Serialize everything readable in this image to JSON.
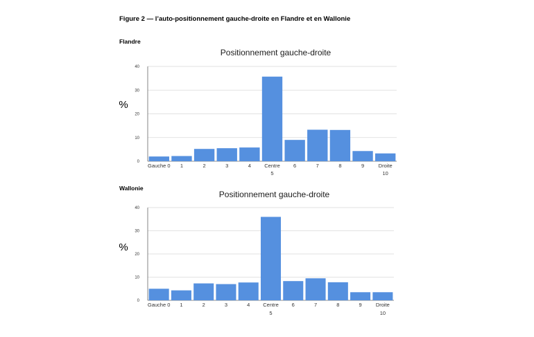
{
  "figure_title": "Figure 2 — l’auto-positionnement gauche-droite en Flandre et en Wallonie",
  "chart_data": [
    {
      "type": "bar",
      "region_label": "Flandre",
      "title": "Positionnement gauche-droite",
      "ylabel": "%",
      "xlabel": "",
      "ylim": [
        0,
        40
      ],
      "yticks": [
        0,
        10,
        20,
        30,
        40
      ],
      "grid": true,
      "legend": "none",
      "categories": [
        "0",
        "1",
        "2",
        "3",
        "4",
        "5",
        "6",
        "7",
        "8",
        "9",
        "10"
      ],
      "tick_labels": [
        "Gauche 0",
        "1",
        "2",
        "3",
        "4",
        "Centre",
        "6",
        "7",
        "8",
        "9",
        "Droite"
      ],
      "sub_labels": [
        "",
        "",
        "",
        "",
        "",
        "5",
        "",
        "",
        "",
        "",
        "10"
      ],
      "values": [
        2.0,
        2.2,
        5.2,
        5.5,
        5.8,
        35.7,
        9.0,
        13.3,
        13.2,
        4.3,
        3.3
      ],
      "bar_color": "#5590df"
    },
    {
      "type": "bar",
      "region_label": "Wallonie",
      "title": "Positionnement gauche-droite",
      "ylabel": "%",
      "xlabel": "",
      "ylim": [
        0,
        40
      ],
      "yticks": [
        0,
        10,
        20,
        30,
        40
      ],
      "grid": true,
      "legend": "none",
      "categories": [
        "0",
        "1",
        "2",
        "3",
        "4",
        "5",
        "6",
        "7",
        "8",
        "9",
        "10"
      ],
      "tick_labels": [
        "Gauche 0",
        "1",
        "2",
        "3",
        "4",
        "Centre",
        "6",
        "7",
        "8",
        "9",
        "Droite"
      ],
      "sub_labels": [
        "",
        "",
        "",
        "",
        "",
        "5",
        "",
        "",
        "",
        "",
        "10"
      ],
      "values": [
        5.0,
        4.3,
        7.3,
        7.0,
        7.7,
        36.0,
        8.3,
        9.5,
        7.8,
        3.5,
        3.5
      ],
      "bar_color": "#5590df"
    }
  ]
}
